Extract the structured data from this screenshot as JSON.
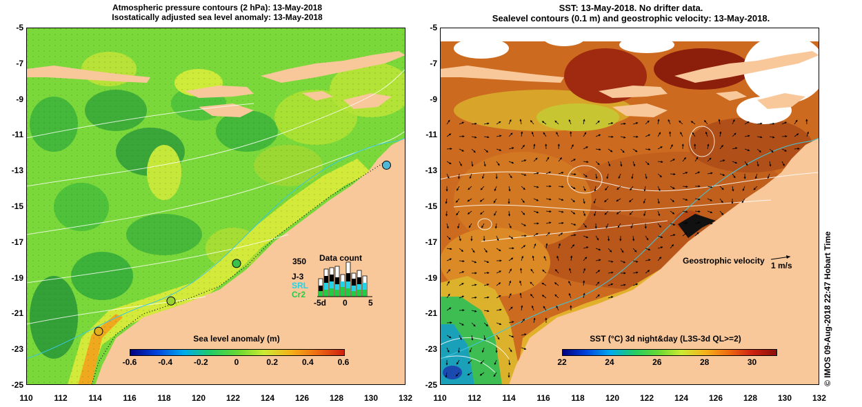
{
  "left_panel": {
    "title_line1": "Atmospheric pressure contours (2 hPa): 13-May-2018",
    "title_line2": "Isostatically adjusted sea level anomaly: 13-May-2018",
    "colorbar": {
      "title": "Sea level anomaly (m)",
      "ticks": [
        "-0.6",
        "-0.4",
        "-0.2",
        "0",
        "0.2",
        "0.4",
        "0.6"
      ],
      "range": [
        -0.6,
        0.6
      ]
    },
    "data_count": {
      "title": "Data count",
      "max_label": "350",
      "series": [
        {
          "label": "J-3",
          "color": "#000000"
        },
        {
          "label": "SRL",
          "color": "#22d3e8"
        },
        {
          "label": "Cr2",
          "color": "#22cc44"
        }
      ],
      "axis_ticks": [
        "-5d",
        "0",
        "5"
      ]
    },
    "tide_gauges": [
      {
        "lon": 130.9,
        "lat": -12.7,
        "color": "#4fb6d6"
      },
      {
        "lon": 122.2,
        "lat": -18.2,
        "color": "#3cc24a"
      },
      {
        "lon": 118.4,
        "lat": -20.3,
        "color": "#9ad233"
      },
      {
        "lon": 114.2,
        "lat": -22.0,
        "color": "#e3b120"
      }
    ]
  },
  "right_panel": {
    "title_line1": "SST: 13-May-2018. No drifter data.",
    "title_line2": "Sealevel contours (0.1 m) and geostrophic velocity: 13-May-2018.",
    "colorbar": {
      "title": "SST (°C) 3d night&day (L3S-3d QL>=2)",
      "ticks": [
        "22",
        "24",
        "26",
        "28",
        "30"
      ],
      "range": [
        22,
        31
      ]
    },
    "velocity_legend": {
      "label": "Geostrophic velocity",
      "unit_label": "1 m/s"
    }
  },
  "axes": {
    "lon_ticks": [
      "110",
      "112",
      "114",
      "116",
      "118",
      "120",
      "122",
      "124",
      "126",
      "128",
      "130",
      "132"
    ],
    "lat_ticks": [
      "-5",
      "-7",
      "-9",
      "-11",
      "-13",
      "-15",
      "-17",
      "-19",
      "-21",
      "-23",
      "-25"
    ],
    "lon_range": [
      110,
      132
    ],
    "lat_range": [
      -25,
      -5
    ]
  },
  "credit": "© IMOS 09-Aug-2018 22:47 Hobart Time",
  "colors": {
    "land": "#f9c89a",
    "sla_ocean": "#7bd83a",
    "sst_ocean": "#cc6a1f"
  }
}
